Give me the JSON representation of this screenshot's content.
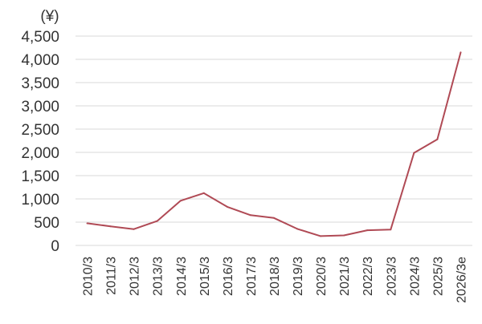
{
  "chart_data": {
    "type": "line",
    "unit_label": "(¥)",
    "title": "",
    "xlabel": "",
    "ylabel": "",
    "ylim": [
      0,
      4500
    ],
    "y_ticks": [
      "0",
      "500",
      "1,000",
      "1,500",
      "2,000",
      "2,500",
      "3,000",
      "3,500",
      "4,000",
      "4,500"
    ],
    "grid": true,
    "legend": "none",
    "categories": [
      "2010/3",
      "2011/3",
      "2012/3",
      "2013/3",
      "2014/3",
      "2015/3",
      "2016/3",
      "2017/3",
      "2018/3",
      "2019/3",
      "2020/3",
      "2021/3",
      "2022/3",
      "2023/3",
      "2024/3",
      "2025/3",
      "2026/3e"
    ],
    "series": [
      {
        "values": [
          475,
          410,
          350,
          525,
          960,
          1125,
          830,
          650,
          590,
          355,
          200,
          215,
          325,
          340,
          1990,
          2280,
          4150
        ],
        "color": "#b04a55"
      }
    ]
  }
}
